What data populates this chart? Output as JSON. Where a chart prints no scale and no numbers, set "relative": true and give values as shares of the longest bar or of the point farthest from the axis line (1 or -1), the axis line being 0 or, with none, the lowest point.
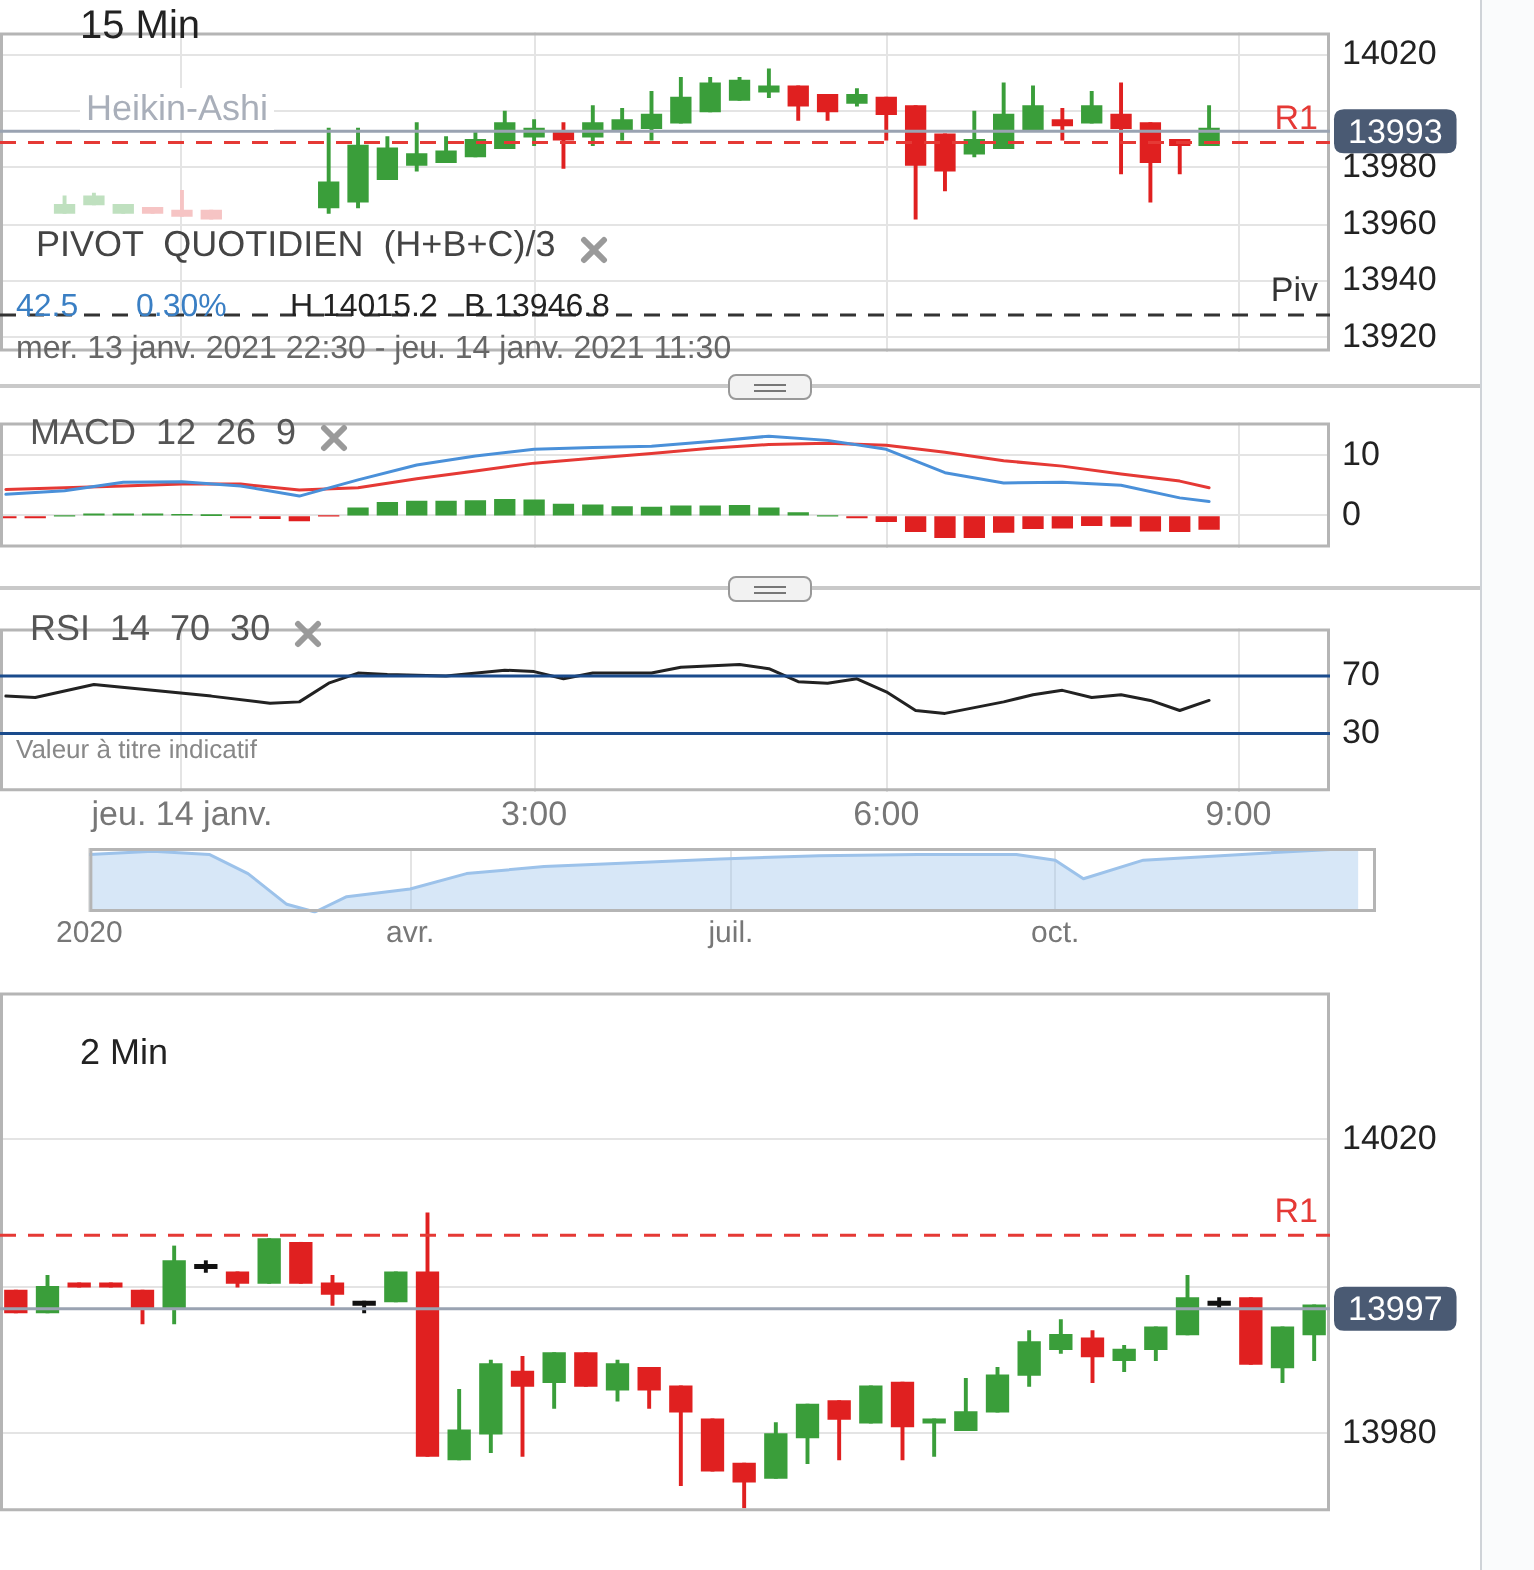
{
  "chart_data": [
    {
      "type": "candlestick",
      "title": "15 Min",
      "annotations": [
        "Heikin-Ashi",
        "PIVOT  QUOTIDIEN  (H+B+C)/3",
        "42.5",
        "0.30%",
        "H 14015.2",
        "B 13946.8",
        "mer. 13 janv. 2021 22:30 - jeu. 14 janv. 2021 11:30"
      ],
      "x": [
        -1,
        -0.75,
        -0.5,
        -0.25,
        0,
        0.25,
        1.25,
        1.5,
        1.75,
        2,
        2.25,
        2.5,
        2.75,
        3,
        3.25,
        3.5,
        3.75,
        4,
        4.25,
        4.5,
        4.75,
        5,
        5.25,
        5.5,
        5.75,
        6,
        6.25,
        6.5,
        6.75,
        7,
        7.25,
        7.5,
        7.75,
        8,
        8.25,
        8.5,
        8.75
      ],
      "ohlc": [
        [
          13964,
          13970,
          13964,
          13967
        ],
        [
          13967,
          13971,
          13967,
          13970
        ],
        [
          13964,
          13967,
          13964,
          13967
        ],
        [
          13966,
          13966,
          13964,
          13964
        ],
        [
          13965,
          13972,
          13963,
          13963
        ],
        [
          13965,
          13965,
          13962,
          13962
        ],
        [
          13966,
          13994,
          13964,
          13975
        ],
        [
          13968,
          13994,
          13966,
          13988
        ],
        [
          13976,
          13991,
          13976,
          13987
        ],
        [
          13981,
          13996,
          13979,
          13985
        ],
        [
          13982,
          13991,
          13982,
          13986
        ],
        [
          13984,
          13993,
          13984,
          13990
        ],
        [
          13987,
          14000,
          13987,
          13996
        ],
        [
          13991,
          13997,
          13988,
          13994
        ],
        [
          13993,
          13996,
          13980,
          13990
        ],
        [
          13991,
          14002,
          13988,
          13996
        ],
        [
          13993,
          14001,
          13990,
          13997
        ],
        [
          13994,
          14007,
          13990,
          13999
        ],
        [
          13996,
          14012,
          13996,
          14005
        ],
        [
          14000,
          14012,
          14000,
          14010
        ],
        [
          14004,
          14012,
          14004,
          14011
        ],
        [
          14007,
          14015,
          14005,
          14009
        ],
        [
          14009,
          14009,
          13997,
          14002
        ],
        [
          14006,
          14006,
          13997,
          14000
        ],
        [
          14003,
          14008,
          14002,
          14006
        ],
        [
          14005,
          14005,
          13990,
          13999
        ],
        [
          14002,
          14002,
          13962,
          13981
        ],
        [
          13992,
          13992,
          13972,
          13979
        ],
        [
          13985,
          14000,
          13984,
          13990
        ],
        [
          13987,
          14010,
          13987,
          13999
        ],
        [
          13993,
          14009,
          13993,
          14002
        ],
        [
          13997,
          14001,
          13990,
          13995
        ],
        [
          13996,
          14007,
          13996,
          14002
        ],
        [
          13999,
          14010,
          13978,
          13994
        ],
        [
          13996,
          13996,
          13968,
          13982
        ],
        [
          13990,
          13990,
          13978,
          13988
        ],
        [
          13988,
          14002,
          13988,
          13994
        ]
      ],
      "colors": [
        "#bfe0bf",
        "#bfe0bf",
        "#bfe0bf",
        "#f6c4c4",
        "#f6c4c4",
        "#f6c4c4",
        "#3a9e3a",
        "#3a9e3a",
        "#3a9e3a",
        "#3a9e3a",
        "#3a9e3a",
        "#3a9e3a",
        "#3a9e3a",
        "#3a9e3a",
        "#e02020",
        "#3a9e3a",
        "#3a9e3a",
        "#3a9e3a",
        "#3a9e3a",
        "#3a9e3a",
        "#3a9e3a",
        "#3a9e3a",
        "#e02020",
        "#e02020",
        "#3a9e3a",
        "#e02020",
        "#e02020",
        "#e02020",
        "#3a9e3a",
        "#3a9e3a",
        "#3a9e3a",
        "#e02020",
        "#3a9e3a",
        "#e02020",
        "#e02020",
        "#e02020",
        "#3a9e3a"
      ],
      "xlim": [
        -1.55,
        9.78
      ],
      "xticks": [
        0,
        3,
        6,
        9
      ],
      "ylim": [
        13915,
        14028
      ],
      "yticks": [
        13920,
        13940,
        13960,
        13980,
        {
          "value": 14000,
          "label": null
        },
        14020
      ],
      "ref_lines": [
        {
          "axis": "y",
          "value": 13993,
          "label": "13993",
          "color": "#9aa3b2"
        },
        {
          "axis": "y",
          "value": 13989,
          "label": "R1",
          "color": "#e53935",
          "line_style": "dashed"
        },
        {
          "axis": "y",
          "value": 13928,
          "label": "Piv",
          "color": "#333333",
          "line_style": "dashed"
        }
      ],
      "grid": true,
      "tick_labels": "y"
    },
    {
      "type": "bar",
      "title": "MACD  12  26  9",
      "series": [
        {
          "type": "bar",
          "x": [
            -1.5,
            -1.25,
            -1,
            -0.75,
            -0.5,
            -0.25,
            0,
            0.25,
            0.5,
            0.75,
            1,
            1.25,
            1.5,
            1.75,
            2,
            2.25,
            2.5,
            2.75,
            3,
            3.25,
            3.5,
            3.75,
            4,
            4.25,
            4.5,
            4.75,
            5,
            5.25,
            5.5,
            5.75,
            6,
            6.25,
            6.5,
            6.75,
            7,
            7.25,
            7.5,
            7.75,
            8,
            8.25,
            8.5,
            8.75
          ],
          "values": [
            -0.3,
            -0.3,
            0,
            0.3,
            0.3,
            0.3,
            0.2,
            0.1,
            -0.3,
            -0.4,
            -0.8,
            0,
            1.3,
            2.2,
            2.4,
            2.4,
            2.5,
            2.7,
            2.6,
            1.9,
            1.8,
            1.5,
            1.4,
            1.6,
            1.6,
            1.7,
            1.3,
            0.5,
            0,
            -0.3,
            -0.9,
            -2.6,
            -3.6,
            -3.6,
            -2.7,
            -2.1,
            -2.0,
            -1.6,
            -1.7,
            -2.5,
            -2.6,
            -2.2
          ],
          "colors": [
            "#e02020",
            "#e02020",
            "#3a9e3a",
            "#3a9e3a",
            "#3a9e3a",
            "#3a9e3a",
            "#3a9e3a",
            "#3a9e3a",
            "#e02020",
            "#e02020",
            "#e02020",
            "#e02020",
            "#3a9e3a",
            "#3a9e3a",
            "#3a9e3a",
            "#3a9e3a",
            "#3a9e3a",
            "#3a9e3a",
            "#3a9e3a",
            "#3a9e3a",
            "#3a9e3a",
            "#3a9e3a",
            "#3a9e3a",
            "#3a9e3a",
            "#3a9e3a",
            "#3a9e3a",
            "#3a9e3a",
            "#3a9e3a",
            "#3a9e3a",
            "#e02020",
            "#e02020",
            "#e02020",
            "#e02020",
            "#e02020",
            "#e02020",
            "#e02020",
            "#e02020",
            "#e02020",
            "#e02020",
            "#e02020",
            "#e02020",
            "#e02020"
          ]
        },
        {
          "type": "line",
          "color": "#4a90d9",
          "x": [
            -1.5,
            -1,
            -0.5,
            0,
            0.5,
            1,
            1.5,
            2,
            2.5,
            3,
            3.5,
            4,
            4.5,
            5,
            5.5,
            6,
            6.5,
            7,
            7.5,
            8,
            8.5,
            8.75
          ],
          "values": [
            3.6,
            4.2,
            5.6,
            5.7,
            5.0,
            3.3,
            6.0,
            8.5,
            10.0,
            11.1,
            11.4,
            11.6,
            12.4,
            13.3,
            12.6,
            11.1,
            7.2,
            5.5,
            5.6,
            5.1,
            3.0,
            2.4
          ]
        },
        {
          "type": "line",
          "color": "#e53935",
          "x": [
            -1.5,
            -1,
            -0.5,
            0,
            0.5,
            1,
            1.5,
            2,
            2.5,
            3,
            3.5,
            4,
            4.5,
            5,
            5.5,
            6,
            6.5,
            7,
            7.5,
            8,
            8.5,
            8.75
          ],
          "values": [
            4.4,
            4.7,
            5.0,
            5.3,
            5.3,
            4.3,
            4.7,
            6.2,
            7.5,
            8.8,
            9.6,
            10.4,
            11.3,
            11.9,
            12.1,
            11.8,
            10.6,
            9.2,
            8.3,
            7.0,
            5.8,
            4.7
          ]
        }
      ],
      "xlim": [
        -1.55,
        9.78
      ],
      "xticks": [
        0,
        3,
        6,
        9
      ],
      "ylim": [
        -5.3,
        15.6
      ],
      "yticks": [
        0,
        10
      ],
      "grid": true,
      "tick_labels": "y"
    },
    {
      "type": "line",
      "title": "RSI  14  70  30",
      "annotations": [
        "Valeur à titre indicatif"
      ],
      "series": [
        {
          "color": "#222222",
          "x": [
            -1.5,
            -1.25,
            -0.75,
            -0.25,
            0.25,
            0.75,
            1,
            1.25,
            1.5,
            1.75,
            2.25,
            2.75,
            3,
            3.25,
            3.5,
            4,
            4.25,
            4.75,
            5,
            5.25,
            5.5,
            5.75,
            6,
            6.25,
            6.5,
            7,
            7.25,
            7.5,
            7.75,
            8,
            8.25,
            8.5,
            8.75
          ],
          "values": [
            56,
            55,
            64,
            60,
            56,
            51,
            52,
            65,
            72,
            71,
            70,
            74,
            73,
            68,
            72,
            72,
            76,
            78,
            75,
            66,
            65,
            68,
            59,
            46,
            44,
            52,
            57,
            60,
            55,
            57,
            53,
            46,
            53
          ]
        }
      ],
      "xlim": [
        -1.55,
        9.78
      ],
      "xticks": [
        {
          "value": 0,
          "label": "jeu. 14 janv."
        },
        {
          "value": 3,
          "label": "3:00"
        },
        {
          "value": 6,
          "label": "6:00"
        },
        {
          "value": 9,
          "label": "9:00"
        }
      ],
      "ylim": [
        -10,
        103
      ],
      "yticks": [
        30,
        70
      ],
      "ref_lines": [
        {
          "axis": "y",
          "value": 70,
          "color": "#1a4b8c"
        },
        {
          "axis": "y",
          "value": 30,
          "color": "#1a4b8c"
        }
      ],
      "grid": "x"
    },
    {
      "type": "area",
      "relative": true,
      "series": [
        {
          "color": "#9cc2ea",
          "x": [
            "2020-01-01",
            "2020-01-19",
            "2020-02-04",
            "2020-02-15",
            "2020-02-26",
            "2020-03-05",
            "2020-03-14",
            "2020-04-01",
            "2020-04-17",
            "2020-05-09",
            "2020-05-31",
            "2020-06-28",
            "2020-07-26",
            "2020-08-23",
            "2020-09-20",
            "2020-10-01",
            "2020-10-09",
            "2020-10-26",
            "2020-11-23",
            "2020-12-26"
          ],
          "values": [
            0.9,
            0.95,
            0.9,
            0.6,
            0.12,
            0,
            0.24,
            0.36,
            0.6,
            0.71,
            0.76,
            0.83,
            0.88,
            0.9,
            0.9,
            0.81,
            0.52,
            0.81,
            0.9,
            1
          ]
        }
      ],
      "xlim": [
        "2020-01-01",
        "2020-12-31"
      ],
      "xticks": [
        {
          "value": "2020-01-01",
          "label": "2020"
        },
        {
          "value": "2020-04-01",
          "label": "avr."
        },
        {
          "value": "2020-07-01",
          "label": "juil."
        },
        {
          "value": "2020-10-01",
          "label": "oct."
        }
      ],
      "grid": "x"
    },
    {
      "type": "candlestick",
      "title": "2 Min",
      "categories": [
        null,
        null,
        null,
        null,
        null,
        null,
        null,
        null,
        null,
        null,
        null,
        null,
        null,
        null,
        null,
        null,
        null,
        null,
        null,
        null,
        null,
        null,
        null,
        null,
        null,
        null,
        null,
        null,
        null,
        null,
        null,
        null,
        null,
        null,
        null,
        null,
        null,
        null,
        null,
        null,
        null,
        null
      ],
      "ohlc": [
        [
          13999.5,
          13999.5,
          13996.5,
          13996.5
        ],
        [
          13996.5,
          14001.5,
          13996.5,
          14000
        ],
        [
          14000.5,
          14000.5,
          14000,
          14000
        ],
        [
          14000.5,
          14000.5,
          14000,
          14000
        ],
        [
          13999.5,
          13999.5,
          13995,
          13997
        ],
        [
          13997,
          14005.5,
          13995,
          14003.5
        ],
        [
          14003,
          14003.5,
          14002,
          14002.5
        ],
        [
          14002,
          14002,
          14000,
          14000.5
        ],
        [
          14000.5,
          14006.5,
          14000.5,
          14006.5
        ],
        [
          14006,
          14006,
          14000.5,
          14000.5
        ],
        [
          14000.5,
          14001.5,
          13997.5,
          13999
        ],
        [
          13998,
          13998,
          13996.5,
          13997.5
        ],
        [
          13998,
          14002,
          13998,
          14002
        ],
        [
          14002,
          14010,
          13977,
          13977
        ],
        [
          13976.5,
          13986,
          13976.5,
          13980.5
        ],
        [
          13980,
          13990,
          13977.5,
          13989.5
        ],
        [
          13988.5,
          13990.5,
          13977,
          13986.5
        ],
        [
          13987,
          13991,
          13983.5,
          13991
        ],
        [
          13991,
          13991,
          13986.5,
          13986.5
        ],
        [
          13986,
          13990,
          13984.5,
          13989.5
        ],
        [
          13989,
          13989,
          13983.5,
          13986
        ],
        [
          13986.5,
          13986.5,
          13973,
          13983
        ],
        [
          13982,
          13982,
          13975,
          13975
        ],
        [
          13976,
          13976,
          13970,
          13973.5
        ],
        [
          13974,
          13981.5,
          13974,
          13980
        ],
        [
          13979.5,
          13984,
          13976,
          13984
        ],
        [
          13984.5,
          13984.5,
          13976.5,
          13982
        ],
        [
          13981.5,
          13986.5,
          13981.5,
          13986.5
        ],
        [
          13987,
          13987,
          13976.5,
          13981
        ],
        [
          13981.5,
          13982,
          13977,
          13982
        ],
        [
          13980.5,
          13987.5,
          13980.5,
          13983
        ],
        [
          13983,
          13989,
          13983,
          13988
        ],
        [
          13988,
          13994,
          13986.5,
          13992.5
        ],
        [
          13991.5,
          13995.5,
          13991,
          13993.5
        ],
        [
          13993,
          13994,
          13987,
          13990.5
        ],
        [
          13990,
          13992,
          13988.5,
          13991.5
        ],
        [
          13991.5,
          13994.5,
          13990,
          13994.5
        ],
        [
          13993.5,
          14001.5,
          13993.5,
          13998.5
        ],
        [
          13998,
          13998.5,
          13997,
          13997.5
        ],
        [
          13998.5,
          13998.5,
          13989.5,
          13989.5
        ],
        [
          13989,
          13994.5,
          13987,
          13994.5
        ],
        [
          13993.5,
          13997.5,
          13990,
          13997.5
        ]
      ],
      "colors": [
        "#e02020",
        "#3a9e3a",
        "#e02020",
        "#e02020",
        "#e02020",
        "#3a9e3a",
        "#111111",
        "#e02020",
        "#3a9e3a",
        "#e02020",
        "#e02020",
        "#111111",
        "#3a9e3a",
        "#e02020",
        "#3a9e3a",
        "#3a9e3a",
        "#e02020",
        "#3a9e3a",
        "#e02020",
        "#3a9e3a",
        "#e02020",
        "#e02020",
        "#e02020",
        "#e02020",
        "#3a9e3a",
        "#3a9e3a",
        "#e02020",
        "#3a9e3a",
        "#e02020",
        "#3a9e3a",
        "#3a9e3a",
        "#3a9e3a",
        "#3a9e3a",
        "#3a9e3a",
        "#e02020",
        "#3a9e3a",
        "#3a9e3a",
        "#3a9e3a",
        "#111111",
        "#e02020",
        "#3a9e3a",
        "#3a9e3a"
      ],
      "ylim": [
        13969.5,
        14040
      ],
      "yticks": [
        13980,
        {
          "value": 14000,
          "label": null
        },
        14020
      ],
      "ref_lines": [
        {
          "axis": "y",
          "value": 14007,
          "label": "R1",
          "color": "#e53935",
          "line_style": "dashed"
        },
        {
          "axis": "y",
          "value": 13997,
          "label": "13997",
          "color": "#9aa3b2"
        }
      ],
      "grid": "y"
    }
  ]
}
